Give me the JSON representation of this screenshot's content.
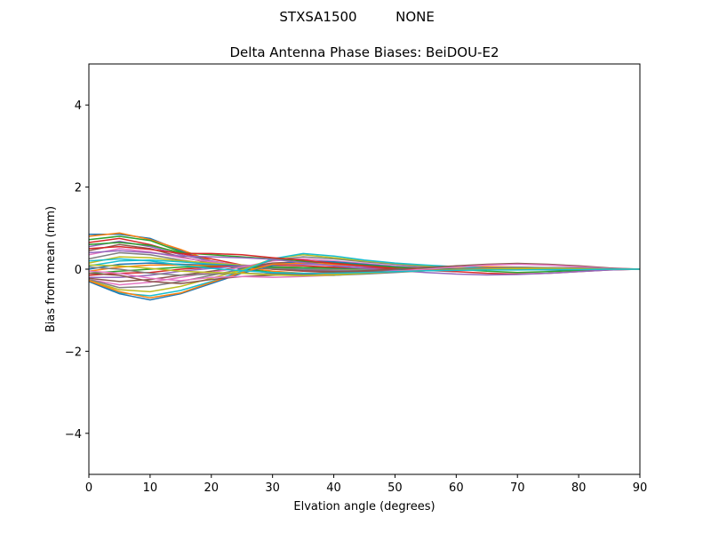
{
  "header": {
    "station": "STXSA1500",
    "radome": "NONE"
  },
  "chart_data": {
    "type": "line",
    "title": "Delta Antenna Phase Biases: BeiDOU-E2",
    "xlabel": "Elvation angle (degrees)",
    "ylabel": "Bias from mean (mm)",
    "xlim": [
      0,
      90
    ],
    "ylim": [
      -5,
      5
    ],
    "xticks": [
      0,
      10,
      20,
      30,
      40,
      50,
      60,
      70,
      80,
      90
    ],
    "yticks": [
      -4,
      -2,
      0,
      2,
      4
    ],
    "ytick_labels": [
      "−4",
      "−2",
      "0",
      "2",
      "4"
    ],
    "grid": false,
    "legend": "none",
    "x": [
      0,
      5,
      10,
      15,
      20,
      25,
      30,
      35,
      40,
      45,
      50,
      55,
      60,
      65,
      70,
      75,
      80,
      85,
      90
    ],
    "colors": [
      "#1f77b4",
      "#ff7f0e",
      "#2ca02c",
      "#d62728",
      "#9467bd",
      "#8c564b",
      "#e377c2",
      "#7f7f7f",
      "#bcbd22",
      "#17becf"
    ],
    "series": [
      {
        "values": [
          0.85,
          0.85,
          0.75,
          0.45,
          0.15,
          0.0,
          -0.1,
          -0.12,
          -0.1,
          -0.05,
          0.0,
          0.02,
          0.03,
          0.02,
          0.0,
          -0.02,
          -0.02,
          0.0,
          0.0
        ]
      },
      {
        "values": [
          0.8,
          0.88,
          0.72,
          0.48,
          0.2,
          0.05,
          -0.05,
          -0.1,
          -0.12,
          -0.08,
          -0.04,
          0.0,
          0.04,
          0.06,
          0.05,
          0.03,
          0.01,
          0.0,
          0.0
        ]
      },
      {
        "values": [
          0.72,
          0.8,
          0.7,
          0.42,
          0.18,
          0.02,
          -0.08,
          -0.14,
          -0.15,
          -0.1,
          -0.05,
          -0.02,
          0.0,
          0.02,
          0.02,
          0.01,
          0.0,
          0.0,
          0.0
        ]
      },
      {
        "values": [
          0.65,
          0.75,
          0.6,
          0.38,
          0.25,
          0.1,
          0.0,
          -0.05,
          -0.08,
          -0.06,
          -0.03,
          0.0,
          0.02,
          0.03,
          0.03,
          0.02,
          0.01,
          0.0,
          0.0
        ]
      },
      {
        "values": [
          0.55,
          0.68,
          0.55,
          0.35,
          0.2,
          0.08,
          0.02,
          -0.02,
          -0.04,
          -0.04,
          -0.02,
          0.0,
          0.01,
          0.02,
          0.02,
          0.01,
          0.0,
          0.0,
          0.0
        ]
      },
      {
        "values": [
          0.45,
          0.6,
          0.5,
          0.3,
          0.15,
          0.06,
          0.0,
          -0.04,
          -0.06,
          -0.05,
          -0.03,
          -0.01,
          0.0,
          0.01,
          0.01,
          0.01,
          0.0,
          0.0,
          0.0
        ]
      },
      {
        "values": [
          0.35,
          0.5,
          0.42,
          0.28,
          0.18,
          0.1,
          0.05,
          0.02,
          0.0,
          -0.02,
          -0.02,
          -0.01,
          0.0,
          0.0,
          0.01,
          0.01,
          0.0,
          0.0,
          0.0
        ]
      },
      {
        "values": [
          0.25,
          0.4,
          0.35,
          0.22,
          0.12,
          0.06,
          0.02,
          0.0,
          -0.02,
          -0.02,
          -0.01,
          0.0,
          0.0,
          0.01,
          0.01,
          0.0,
          0.0,
          0.0,
          0.0
        ]
      },
      {
        "values": [
          0.15,
          0.3,
          0.28,
          0.2,
          0.15,
          0.1,
          0.06,
          0.03,
          0.01,
          0.0,
          0.0,
          0.0,
          0.01,
          0.01,
          0.0,
          0.0,
          0.0,
          0.0,
          0.0
        ]
      },
      {
        "values": [
          0.08,
          0.2,
          0.22,
          0.18,
          0.12,
          0.08,
          0.05,
          0.03,
          0.02,
          0.01,
          0.0,
          0.0,
          0.0,
          0.0,
          0.0,
          0.0,
          0.0,
          0.0,
          0.0
        ]
      },
      {
        "values": [
          0.0,
          0.12,
          0.15,
          0.12,
          0.1,
          0.08,
          0.06,
          0.04,
          0.02,
          0.01,
          0.0,
          -0.01,
          -0.01,
          0.0,
          0.0,
          0.0,
          0.0,
          0.0,
          0.0
        ]
      },
      {
        "values": [
          -0.05,
          0.05,
          0.1,
          0.1,
          0.08,
          0.06,
          0.05,
          0.04,
          0.03,
          0.02,
          0.01,
          0.0,
          0.0,
          0.0,
          0.0,
          0.0,
          0.0,
          0.0,
          0.0
        ]
      },
      {
        "values": [
          -0.1,
          -0.05,
          0.0,
          0.05,
          0.06,
          0.05,
          0.05,
          0.04,
          0.03,
          0.02,
          0.01,
          0.0,
          0.0,
          0.0,
          0.0,
          0.0,
          0.0,
          0.0,
          0.0
        ]
      },
      {
        "values": [
          -0.15,
          -0.1,
          -0.08,
          0.0,
          0.05,
          0.08,
          0.1,
          0.08,
          0.05,
          0.03,
          0.02,
          0.01,
          0.0,
          0.0,
          0.0,
          0.0,
          0.0,
          0.0,
          0.0
        ]
      },
      {
        "values": [
          -0.2,
          -0.2,
          -0.15,
          -0.05,
          0.02,
          0.08,
          0.12,
          0.12,
          0.1,
          0.06,
          0.03,
          0.01,
          0.0,
          0.0,
          0.0,
          0.0,
          0.0,
          0.0,
          0.0
        ]
      },
      {
        "values": [
          -0.22,
          -0.3,
          -0.25,
          -0.15,
          -0.05,
          0.05,
          0.15,
          0.18,
          0.15,
          0.1,
          0.06,
          0.03,
          0.01,
          0.0,
          0.0,
          0.0,
          0.0,
          0.0,
          0.0
        ]
      },
      {
        "values": [
          -0.25,
          -0.38,
          -0.32,
          -0.2,
          -0.08,
          0.05,
          0.2,
          0.25,
          0.2,
          0.14,
          0.08,
          0.04,
          0.02,
          0.0,
          0.0,
          0.0,
          0.0,
          0.0,
          0.0
        ]
      },
      {
        "values": [
          -0.25,
          -0.45,
          -0.42,
          -0.3,
          -0.15,
          0.0,
          0.22,
          0.3,
          0.25,
          0.18,
          0.12,
          0.06,
          0.02,
          0.0,
          -0.01,
          0.0,
          0.0,
          0.0,
          0.0
        ]
      },
      {
        "values": [
          -0.28,
          -0.5,
          -0.55,
          -0.42,
          -0.22,
          -0.02,
          0.25,
          0.35,
          0.28,
          0.2,
          0.14,
          0.08,
          0.04,
          0.02,
          0.0,
          0.0,
          0.0,
          0.0,
          0.0
        ]
      },
      {
        "values": [
          -0.3,
          -0.58,
          -0.65,
          -0.52,
          -0.3,
          -0.05,
          0.25,
          0.38,
          0.32,
          0.22,
          0.15,
          0.1,
          0.06,
          0.03,
          0.01,
          0.0,
          0.0,
          0.0,
          0.0
        ]
      },
      {
        "values": [
          -0.3,
          -0.6,
          -0.75,
          -0.6,
          -0.35,
          -0.1,
          0.1,
          0.2,
          0.18,
          0.12,
          0.06,
          0.02,
          0.0,
          -0.01,
          0.0,
          0.0,
          0.0,
          0.0,
          0.0
        ]
      },
      {
        "values": [
          -0.28,
          -0.55,
          -0.7,
          -0.58,
          -0.32,
          -0.08,
          0.12,
          0.15,
          0.12,
          0.08,
          0.04,
          0.01,
          0.0,
          0.0,
          0.0,
          0.0,
          0.0,
          0.0,
          0.0
        ]
      },
      {
        "values": [
          0.6,
          0.65,
          0.58,
          0.4,
          0.35,
          0.3,
          0.25,
          0.2,
          0.15,
          0.1,
          0.05,
          0.02,
          0.0,
          -0.05,
          -0.08,
          -0.06,
          -0.03,
          -0.01,
          0.0
        ]
      },
      {
        "values": [
          0.5,
          0.55,
          0.48,
          0.38,
          0.38,
          0.35,
          0.28,
          0.22,
          0.14,
          0.08,
          0.02,
          -0.03,
          -0.06,
          -0.1,
          -0.12,
          -0.1,
          -0.06,
          -0.02,
          0.0
        ]
      },
      {
        "values": [
          0.4,
          0.45,
          0.4,
          0.32,
          0.3,
          0.28,
          0.24,
          0.16,
          0.08,
          0.02,
          -0.03,
          -0.08,
          -0.12,
          -0.14,
          -0.13,
          -0.1,
          -0.06,
          -0.02,
          0.0
        ]
      },
      {
        "values": [
          -0.1,
          -0.15,
          -0.3,
          -0.35,
          -0.25,
          -0.18,
          -0.15,
          -0.12,
          -0.08,
          -0.04,
          0.0,
          0.04,
          0.08,
          0.12,
          0.14,
          0.12,
          0.08,
          0.03,
          0.0
        ]
      },
      {
        "values": [
          -0.05,
          -0.1,
          -0.22,
          -0.28,
          -0.2,
          -0.18,
          -0.2,
          -0.18,
          -0.15,
          -0.1,
          -0.05,
          0.0,
          0.05,
          0.1,
          0.12,
          0.1,
          0.06,
          0.02,
          0.0
        ]
      },
      {
        "values": [
          0.05,
          0.0,
          -0.1,
          -0.15,
          -0.12,
          -0.1,
          -0.12,
          -0.14,
          -0.15,
          -0.12,
          -0.08,
          -0.04,
          0.0,
          0.03,
          0.05,
          0.04,
          0.03,
          0.01,
          0.0
        ]
      },
      {
        "values": [
          0.1,
          0.08,
          0.02,
          -0.05,
          -0.08,
          -0.1,
          -0.14,
          -0.16,
          -0.14,
          -0.1,
          -0.06,
          -0.04,
          -0.02,
          0.0,
          0.02,
          0.02,
          0.01,
          0.0,
          0.0
        ]
      },
      {
        "values": [
          0.2,
          0.25,
          0.2,
          0.1,
          0.02,
          -0.04,
          -0.08,
          -0.1,
          -0.1,
          -0.08,
          -0.06,
          -0.04,
          -0.03,
          -0.02,
          -0.02,
          -0.01,
          -0.01,
          0.0,
          0.0
        ]
      }
    ]
  }
}
